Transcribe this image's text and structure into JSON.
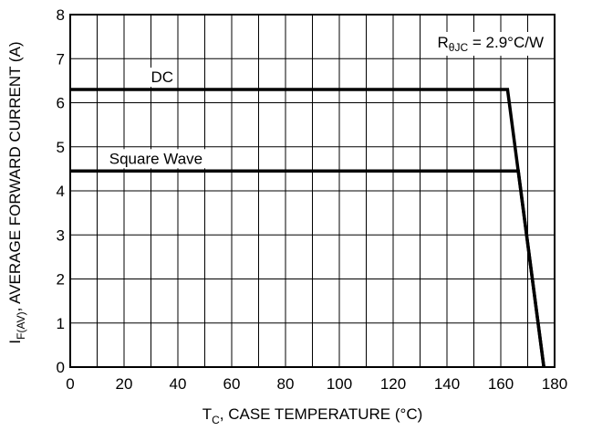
{
  "chart_data": {
    "type": "line",
    "xlabel": {
      "main": "T",
      "sub": "C",
      "rest": ", CASE TEMPERATURE (°C)"
    },
    "ylabel": {
      "main": "I",
      "sub": "F(AV)",
      "rest": ", AVERAGE FORWARD CURRENT (A)"
    },
    "xlim": [
      0,
      180
    ],
    "ylim": [
      0,
      8
    ],
    "x_ticks": [
      0,
      20,
      40,
      60,
      80,
      100,
      120,
      140,
      160,
      180
    ],
    "y_ticks": [
      0,
      1,
      2,
      3,
      4,
      5,
      6,
      7,
      8
    ],
    "x_grid_step": 10,
    "grid": true,
    "annotation": {
      "main": "R",
      "sub": "θJC",
      "rest": " = 2.9°C/W"
    },
    "series": [
      {
        "name": "DC",
        "x": [
          0,
          162.5,
          176
        ],
        "y": [
          6.3,
          6.3,
          0
        ]
      },
      {
        "name": "Square Wave",
        "x": [
          0,
          166.5,
          176
        ],
        "y": [
          4.45,
          4.45,
          0
        ]
      }
    ]
  }
}
